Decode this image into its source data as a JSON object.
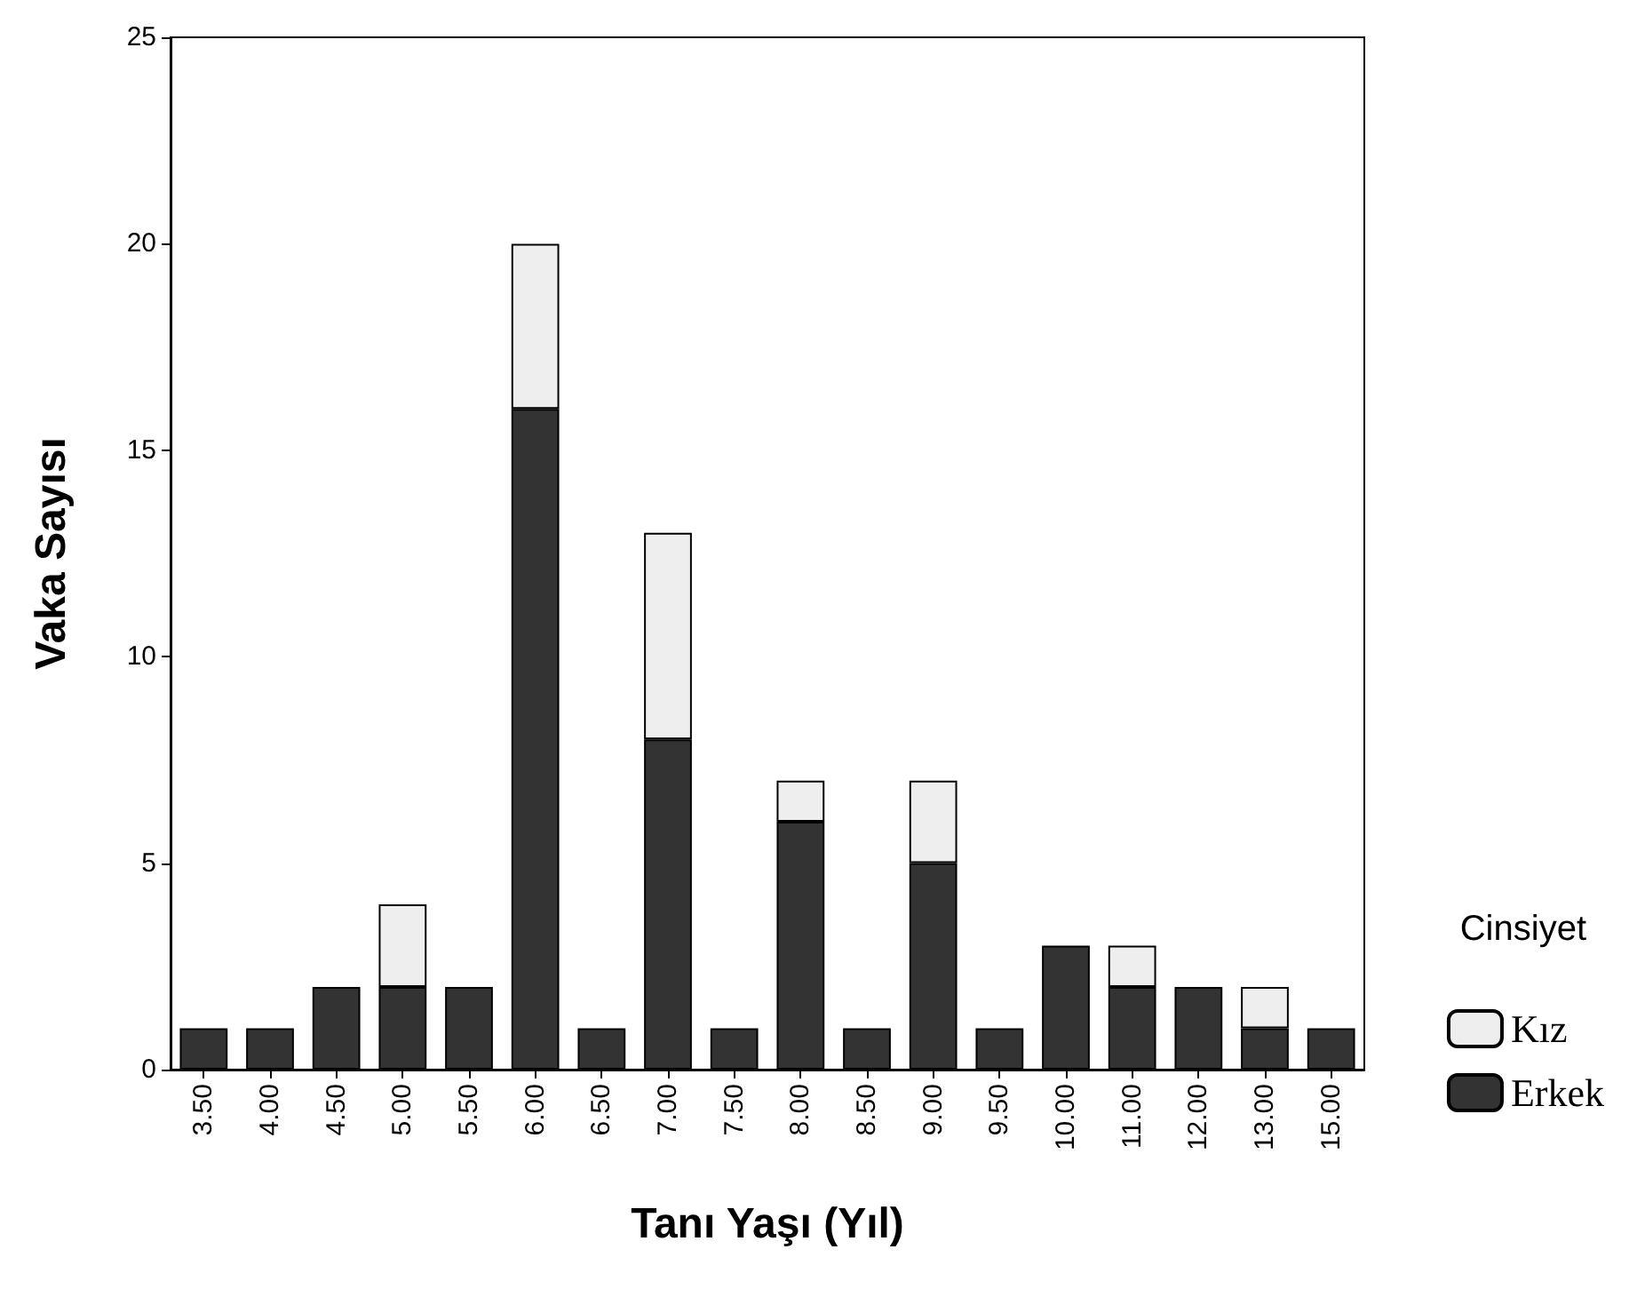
{
  "chart_data": {
    "type": "bar",
    "stacked": true,
    "xlabel": "Tanı Yaşı (Yıl)",
    "ylabel": "Vaka Sayısı",
    "legend_title": "Cinsiyet",
    "legend": "right",
    "grid": false,
    "categories": [
      "3.50",
      "4.00",
      "4.50",
      "5.00",
      "5.50",
      "6.00",
      "6.50",
      "7.00",
      "7.50",
      "8.00",
      "8.50",
      "9.00",
      "9.50",
      "10.00",
      "11.00",
      "12.00",
      "13.00",
      "15.00"
    ],
    "series": [
      {
        "name": "Erkek",
        "color": "#333333",
        "values": [
          1,
          1,
          2,
          2,
          2,
          16,
          1,
          8,
          1,
          6,
          1,
          5,
          1,
          3,
          2,
          2,
          1,
          1
        ]
      },
      {
        "name": "Kız",
        "color": "#eeeeee",
        "values": [
          null,
          null,
          null,
          2,
          null,
          4,
          null,
          5,
          null,
          1,
          null,
          2,
          null,
          null,
          1,
          null,
          1,
          null
        ]
      }
    ],
    "ylim": [
      0,
      25
    ],
    "yticks": [
      0,
      5,
      10,
      15,
      20,
      25
    ]
  }
}
